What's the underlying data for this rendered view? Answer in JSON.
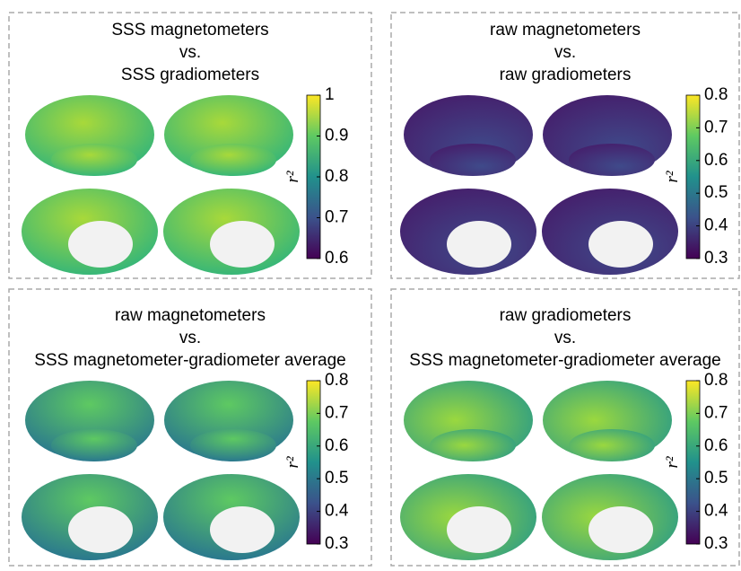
{
  "panels": [
    {
      "title": [
        "SSS magnetometers",
        "vs.",
        "SSS gradiometers"
      ],
      "colorbar": {
        "label": "r²",
        "lim": [
          0.6,
          1
        ],
        "ticks": [
          0.6,
          0.7,
          0.8,
          0.9,
          1
        ]
      }
    },
    {
      "title": [
        "raw magnetometers",
        "vs.",
        "raw gradiometers"
      ],
      "colorbar": {
        "label": "r²",
        "lim": [
          0.3,
          0.8
        ],
        "ticks": [
          0.3,
          0.4,
          0.5,
          0.6,
          0.7,
          0.8
        ]
      }
    },
    {
      "title": [
        "raw magnetometers",
        "vs.",
        "SSS magnetometer-gradiometer average"
      ],
      "colorbar": {
        "label": "r²",
        "lim": [
          0.3,
          0.8
        ],
        "ticks": [
          0.3,
          0.4,
          0.5,
          0.6,
          0.7,
          0.8
        ]
      }
    },
    {
      "title": [
        "raw gradiometers",
        "vs.",
        "SSS magnetometer-gradiometer average"
      ],
      "colorbar": {
        "label": "r²",
        "lim": [
          0.3,
          0.8
        ],
        "ticks": [
          0.3,
          0.4,
          0.5,
          0.6,
          0.7,
          0.8
        ]
      }
    }
  ]
}
